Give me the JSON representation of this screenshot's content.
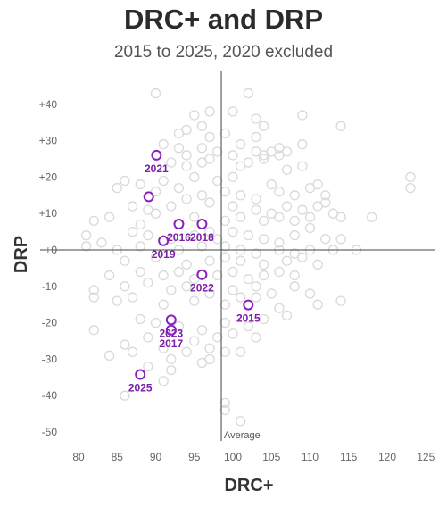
{
  "chart_data": {
    "type": "scatter",
    "title": "DRC+ and DRP",
    "subtitle": "2015 to 2025, 2020 excluded",
    "xlabel": "DRC+",
    "ylabel": "DRP",
    "xlim": [
      78,
      127
    ],
    "ylim": [
      -52,
      45
    ],
    "x_ticks": [
      80,
      85,
      90,
      95,
      100,
      105,
      110,
      115,
      120,
      125
    ],
    "y_ticks": [
      40,
      30,
      20,
      10,
      0,
      -10,
      -20,
      -30,
      -40,
      -50
    ],
    "y_tick_labels": [
      "+40",
      "+30",
      "+20",
      "+10",
      "+0",
      "-10",
      "-20",
      "-30",
      "-40",
      "-50"
    ],
    "average_label": "Average",
    "average_drc": 98.5,
    "grid": false,
    "colors": {
      "background_points": "#d9d9d9",
      "highlight": "#8a1fbf",
      "axis": "#444444"
    },
    "highlighted": [
      {
        "label": "2021",
        "x": 90.1,
        "y": 26.0
      },
      {
        "label": "",
        "x": 89.1,
        "y": 14.6
      },
      {
        "label": "2016",
        "x": 93.0,
        "y": 7.1
      },
      {
        "label": "2018",
        "x": 96.0,
        "y": 7.1
      },
      {
        "label": "2019",
        "x": 91.0,
        "y": 2.5
      },
      {
        "label": "2022",
        "x": 96.0,
        "y": -6.8
      },
      {
        "label": "2015",
        "x": 102.0,
        "y": -15.1
      },
      {
        "label": "2023",
        "x": 92.0,
        "y": -19.2
      },
      {
        "label": "2017",
        "x": 92.0,
        "y": -22.0
      },
      {
        "label": "2025",
        "x": 88.0,
        "y": -34.2
      }
    ],
    "background_points": [
      [
        90,
        43
      ],
      [
        102,
        43
      ],
      [
        97,
        38
      ],
      [
        95,
        37
      ],
      [
        100,
        38
      ],
      [
        103,
        36
      ],
      [
        109,
        37
      ],
      [
        114,
        34
      ],
      [
        96,
        34
      ],
      [
        104,
        34
      ],
      [
        94,
        33
      ],
      [
        93,
        32
      ],
      [
        97,
        31
      ],
      [
        99,
        32
      ],
      [
        101,
        29
      ],
      [
        103,
        31
      ],
      [
        91,
        29
      ],
      [
        93,
        28
      ],
      [
        96,
        28
      ],
      [
        105,
        27
      ],
      [
        106,
        28
      ],
      [
        109,
        29
      ],
      [
        94,
        26
      ],
      [
        97,
        25
      ],
      [
        98,
        27
      ],
      [
        100,
        26
      ],
      [
        103,
        27
      ],
      [
        104,
        26
      ],
      [
        106,
        26
      ],
      [
        107,
        27
      ],
      [
        92,
        24
      ],
      [
        94,
        23
      ],
      [
        96,
        24
      ],
      [
        101,
        23
      ],
      [
        102,
        24
      ],
      [
        104,
        25
      ],
      [
        107,
        22
      ],
      [
        109,
        23
      ],
      [
        86,
        19
      ],
      [
        88,
        18
      ],
      [
        91,
        19
      ],
      [
        95,
        20
      ],
      [
        98,
        19
      ],
      [
        100,
        20
      ],
      [
        105,
        18
      ],
      [
        111,
        18
      ],
      [
        112,
        15
      ],
      [
        123,
        20
      ],
      [
        123,
        17
      ],
      [
        85,
        17
      ],
      [
        90,
        16
      ],
      [
        93,
        17
      ],
      [
        96,
        15
      ],
      [
        99,
        16
      ],
      [
        101,
        15
      ],
      [
        103,
        14
      ],
      [
        106,
        16
      ],
      [
        108,
        15
      ],
      [
        110,
        17
      ],
      [
        112,
        13
      ],
      [
        87,
        12
      ],
      [
        89,
        11
      ],
      [
        92,
        12
      ],
      [
        94,
        14
      ],
      [
        97,
        13
      ],
      [
        100,
        12
      ],
      [
        103,
        11
      ],
      [
        105,
        10
      ],
      [
        107,
        12
      ],
      [
        109,
        11
      ],
      [
        111,
        12
      ],
      [
        113,
        10
      ],
      [
        82,
        8
      ],
      [
        84,
        9
      ],
      [
        88,
        7
      ],
      [
        90,
        10
      ],
      [
        95,
        9
      ],
      [
        99,
        8
      ],
      [
        101,
        9
      ],
      [
        104,
        8
      ],
      [
        106,
        9
      ],
      [
        108,
        8
      ],
      [
        110,
        9
      ],
      [
        114,
        9
      ],
      [
        118,
        9
      ],
      [
        81,
        4
      ],
      [
        83,
        2
      ],
      [
        87,
        5
      ],
      [
        89,
        4
      ],
      [
        92,
        3
      ],
      [
        95,
        4
      ],
      [
        97,
        5
      ],
      [
        98,
        3
      ],
      [
        100,
        5
      ],
      [
        102,
        4
      ],
      [
        104,
        3
      ],
      [
        106,
        2
      ],
      [
        108,
        4
      ],
      [
        110,
        6
      ],
      [
        112,
        3
      ],
      [
        114,
        3
      ],
      [
        81,
        1
      ],
      [
        85,
        0
      ],
      [
        88,
        1
      ],
      [
        93,
        0
      ],
      [
        96,
        1
      ],
      [
        99,
        1
      ],
      [
        101,
        0
      ],
      [
        103,
        -1
      ],
      [
        106,
        0
      ],
      [
        108,
        -1
      ],
      [
        110,
        0
      ],
      [
        113,
        0
      ],
      [
        116,
        0
      ],
      [
        86,
        -3
      ],
      [
        90,
        -2
      ],
      [
        94,
        -4
      ],
      [
        97,
        -3
      ],
      [
        99,
        -2
      ],
      [
        101,
        -3
      ],
      [
        104,
        -4
      ],
      [
        107,
        -3
      ],
      [
        109,
        -2
      ],
      [
        111,
        -4
      ],
      [
        84,
        -7
      ],
      [
        88,
        -6
      ],
      [
        91,
        -7
      ],
      [
        93,
        -6
      ],
      [
        95,
        -8
      ],
      [
        98,
        -7
      ],
      [
        100,
        -6
      ],
      [
        102,
        -8
      ],
      [
        104,
        -7
      ],
      [
        106,
        -6
      ],
      [
        108,
        -7
      ],
      [
        82,
        -11
      ],
      [
        86,
        -10
      ],
      [
        89,
        -9
      ],
      [
        92,
        -11
      ],
      [
        94,
        -10
      ],
      [
        97,
        -12
      ],
      [
        100,
        -11
      ],
      [
        103,
        -10
      ],
      [
        105,
        -12
      ],
      [
        108,
        -10
      ],
      [
        110,
        -12
      ],
      [
        82,
        -13
      ],
      [
        85,
        -14
      ],
      [
        87,
        -13
      ],
      [
        91,
        -15
      ],
      [
        95,
        -14
      ],
      [
        99,
        -15
      ],
      [
        101,
        -13
      ],
      [
        103,
        -13
      ],
      [
        106,
        -16
      ],
      [
        111,
        -15
      ],
      [
        114,
        -14
      ],
      [
        82,
        -22
      ],
      [
        88,
        -19
      ],
      [
        90,
        -20
      ],
      [
        93,
        -21
      ],
      [
        96,
        -22
      ],
      [
        99,
        -20
      ],
      [
        102,
        -21
      ],
      [
        104,
        -19
      ],
      [
        107,
        -18
      ],
      [
        86,
        -26
      ],
      [
        89,
        -24
      ],
      [
        91,
        -27
      ],
      [
        95,
        -25
      ],
      [
        98,
        -24
      ],
      [
        100,
        -23
      ],
      [
        103,
        -24
      ],
      [
        84,
        -29
      ],
      [
        87,
        -28
      ],
      [
        92,
        -30
      ],
      [
        94,
        -28
      ],
      [
        97,
        -27
      ],
      [
        99,
        -28
      ],
      [
        101,
        -28
      ],
      [
        89,
        -32
      ],
      [
        92,
        -33
      ],
      [
        96,
        -31
      ],
      [
        97,
        -30
      ],
      [
        91,
        -36
      ],
      [
        86,
        -40
      ],
      [
        99,
        -42
      ],
      [
        99,
        -44
      ],
      [
        101,
        -47
      ]
    ]
  }
}
